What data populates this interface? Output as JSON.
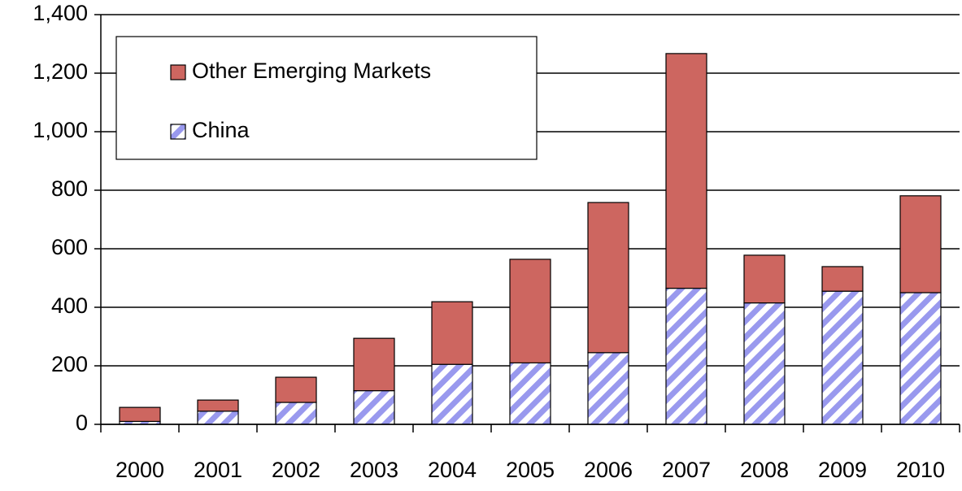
{
  "chart_data": {
    "type": "stacked_bar",
    "categories": [
      "2000",
      "2001",
      "2002",
      "2003",
      "2004",
      "2005",
      "2006",
      "2007",
      "2008",
      "2009",
      "2010"
    ],
    "series": [
      {
        "name": "China",
        "color": "#9999ee",
        "values": [
          10,
          45,
          75,
          115,
          205,
          210,
          245,
          465,
          415,
          455,
          450
        ]
      },
      {
        "name": "Other Emerging Markets",
        "color": "#cd6660",
        "values": [
          48,
          38,
          86,
          179,
          214,
          354,
          513,
          802,
          163,
          84,
          331
        ]
      }
    ],
    "ylim": [
      0,
      1400
    ],
    "yticks": [
      0,
      200,
      400,
      600,
      800,
      {
        "value": 1000,
        "label": "1,000"
      },
      {
        "value": 1200,
        "label": "1,200"
      },
      {
        "value": 1400,
        "label": "1,400"
      }
    ],
    "grid": true,
    "legend": "upper left"
  }
}
